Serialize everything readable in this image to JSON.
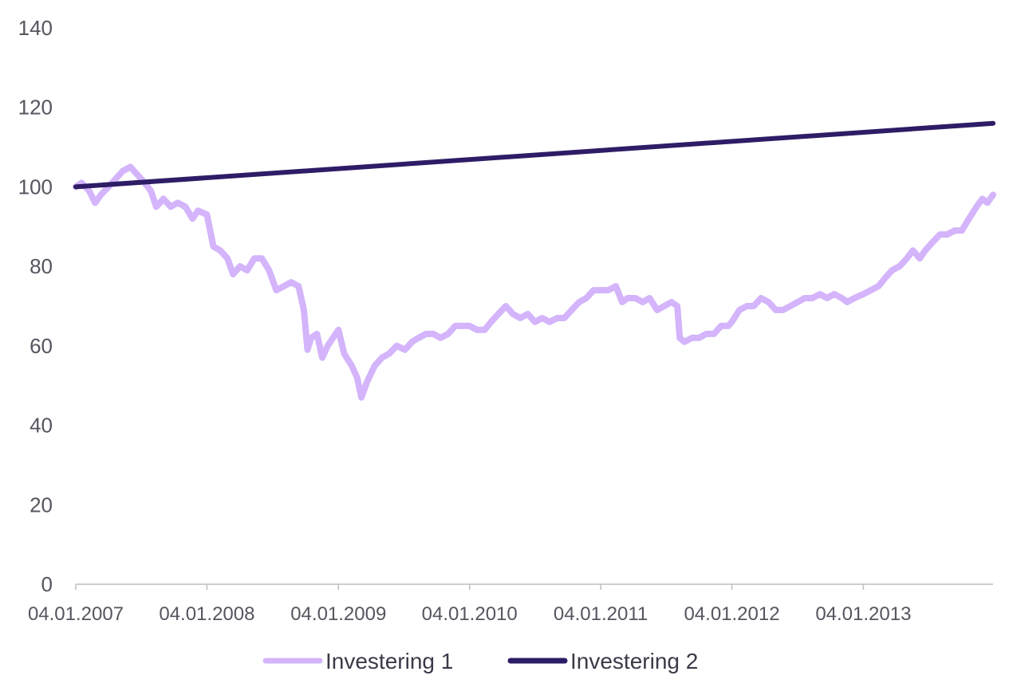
{
  "chart_data": {
    "type": "line",
    "title": "",
    "xlabel": "",
    "ylabel": "",
    "ylim": [
      0,
      140
    ],
    "y_ticks": [
      0,
      20,
      40,
      60,
      80,
      100,
      120,
      140
    ],
    "x_range": [
      "2007-01-04",
      "2013-12-31"
    ],
    "x_ticks": [
      {
        "date": "2007-01-04",
        "label": "04.01.2007"
      },
      {
        "date": "2008-01-04",
        "label": "04.01.2008"
      },
      {
        "date": "2009-01-04",
        "label": "04.01.2009"
      },
      {
        "date": "2010-01-04",
        "label": "04.01.2010"
      },
      {
        "date": "2011-01-04",
        "label": "04.01.2011"
      },
      {
        "date": "2012-01-04",
        "label": "04.01.2012"
      },
      {
        "date": "2013-01-04",
        "label": "04.01.2013"
      }
    ],
    "grid": false,
    "legend_position": "bottom-center",
    "series": [
      {
        "name": "Investering 1",
        "color": "#d4b4fb",
        "points": [
          [
            "2007-01-04",
            100
          ],
          [
            "2007-01-20",
            101
          ],
          [
            "2007-02-10",
            99
          ],
          [
            "2007-02-27",
            96
          ],
          [
            "2007-03-15",
            98
          ],
          [
            "2007-04-05",
            100
          ],
          [
            "2007-04-25",
            102
          ],
          [
            "2007-05-15",
            104
          ],
          [
            "2007-06-05",
            105
          ],
          [
            "2007-06-25",
            103
          ],
          [
            "2007-07-15",
            101
          ],
          [
            "2007-08-01",
            99
          ],
          [
            "2007-08-16",
            95
          ],
          [
            "2007-09-05",
            97
          ],
          [
            "2007-09-25",
            95
          ],
          [
            "2007-10-15",
            96
          ],
          [
            "2007-11-05",
            95
          ],
          [
            "2007-11-25",
            92
          ],
          [
            "2007-12-10",
            94
          ],
          [
            "2008-01-04",
            93
          ],
          [
            "2008-01-22",
            85
          ],
          [
            "2008-02-10",
            84
          ],
          [
            "2008-03-01",
            82
          ],
          [
            "2008-03-17",
            78
          ],
          [
            "2008-04-05",
            80
          ],
          [
            "2008-04-25",
            79
          ],
          [
            "2008-05-15",
            82
          ],
          [
            "2008-06-05",
            82
          ],
          [
            "2008-06-25",
            79
          ],
          [
            "2008-07-15",
            74
          ],
          [
            "2008-08-05",
            75
          ],
          [
            "2008-08-25",
            76
          ],
          [
            "2008-09-15",
            75
          ],
          [
            "2008-09-30",
            69
          ],
          [
            "2008-10-10",
            59
          ],
          [
            "2008-10-20",
            62
          ],
          [
            "2008-11-05",
            63
          ],
          [
            "2008-11-20",
            57
          ],
          [
            "2008-12-05",
            60
          ],
          [
            "2008-12-20",
            62
          ],
          [
            "2009-01-04",
            64
          ],
          [
            "2009-01-20",
            58
          ],
          [
            "2009-02-10",
            55
          ],
          [
            "2009-02-25",
            52
          ],
          [
            "2009-03-09",
            47
          ],
          [
            "2009-03-25",
            51
          ],
          [
            "2009-04-15",
            55
          ],
          [
            "2009-05-05",
            57
          ],
          [
            "2009-05-25",
            58
          ],
          [
            "2009-06-15",
            60
          ],
          [
            "2009-07-08",
            59
          ],
          [
            "2009-07-28",
            61
          ],
          [
            "2009-08-15",
            62
          ],
          [
            "2009-09-05",
            63
          ],
          [
            "2009-09-25",
            63
          ],
          [
            "2009-10-15",
            62
          ],
          [
            "2009-11-05",
            63
          ],
          [
            "2009-11-25",
            65
          ],
          [
            "2009-12-15",
            65
          ],
          [
            "2010-01-04",
            65
          ],
          [
            "2010-01-25",
            64
          ],
          [
            "2010-02-15",
            64
          ],
          [
            "2010-03-05",
            66
          ],
          [
            "2010-03-25",
            68
          ],
          [
            "2010-04-15",
            70
          ],
          [
            "2010-05-05",
            68
          ],
          [
            "2010-05-25",
            67
          ],
          [
            "2010-06-15",
            68
          ],
          [
            "2010-07-05",
            66
          ],
          [
            "2010-07-25",
            67
          ],
          [
            "2010-08-15",
            66
          ],
          [
            "2010-09-05",
            67
          ],
          [
            "2010-09-25",
            67
          ],
          [
            "2010-10-15",
            69
          ],
          [
            "2010-11-05",
            71
          ],
          [
            "2010-11-25",
            72
          ],
          [
            "2010-12-15",
            74
          ],
          [
            "2011-01-04",
            74
          ],
          [
            "2011-01-25",
            74
          ],
          [
            "2011-02-15",
            75
          ],
          [
            "2011-03-05",
            71
          ],
          [
            "2011-03-20",
            72
          ],
          [
            "2011-04-10",
            72
          ],
          [
            "2011-05-01",
            71
          ],
          [
            "2011-05-20",
            72
          ],
          [
            "2011-06-10",
            69
          ],
          [
            "2011-06-30",
            70
          ],
          [
            "2011-07-20",
            71
          ],
          [
            "2011-08-05",
            70
          ],
          [
            "2011-08-12",
            62
          ],
          [
            "2011-08-25",
            61
          ],
          [
            "2011-09-15",
            62
          ],
          [
            "2011-10-05",
            62
          ],
          [
            "2011-10-25",
            63
          ],
          [
            "2011-11-15",
            63
          ],
          [
            "2011-12-05",
            65
          ],
          [
            "2011-12-25",
            65
          ],
          [
            "2012-01-04",
            66
          ],
          [
            "2012-01-25",
            69
          ],
          [
            "2012-02-15",
            70
          ],
          [
            "2012-03-05",
            70
          ],
          [
            "2012-03-25",
            72
          ],
          [
            "2012-04-15",
            71
          ],
          [
            "2012-05-05",
            69
          ],
          [
            "2012-05-25",
            69
          ],
          [
            "2012-06-15",
            70
          ],
          [
            "2012-07-05",
            71
          ],
          [
            "2012-07-25",
            72
          ],
          [
            "2012-08-15",
            72
          ],
          [
            "2012-09-05",
            73
          ],
          [
            "2012-09-25",
            72
          ],
          [
            "2012-10-15",
            73
          ],
          [
            "2012-11-05",
            72
          ],
          [
            "2012-11-20",
            71
          ],
          [
            "2012-12-10",
            72
          ],
          [
            "2013-01-04",
            73
          ],
          [
            "2013-01-25",
            74
          ],
          [
            "2013-02-15",
            75
          ],
          [
            "2013-03-05",
            77
          ],
          [
            "2013-03-25",
            79
          ],
          [
            "2013-04-15",
            80
          ],
          [
            "2013-05-05",
            82
          ],
          [
            "2013-05-22",
            84
          ],
          [
            "2013-06-10",
            82
          ],
          [
            "2013-06-25",
            84
          ],
          [
            "2013-07-15",
            86
          ],
          [
            "2013-08-05",
            88
          ],
          [
            "2013-08-25",
            88
          ],
          [
            "2013-09-15",
            89
          ],
          [
            "2013-10-05",
            89
          ],
          [
            "2013-10-25",
            92
          ],
          [
            "2013-11-15",
            95
          ],
          [
            "2013-12-01",
            97
          ],
          [
            "2013-12-15",
            96
          ],
          [
            "2013-12-31",
            98
          ]
        ]
      },
      {
        "name": "Investering 2",
        "color": "#2e1c66",
        "points": [
          [
            "2007-01-04",
            100
          ],
          [
            "2013-12-31",
            116
          ]
        ]
      }
    ]
  }
}
